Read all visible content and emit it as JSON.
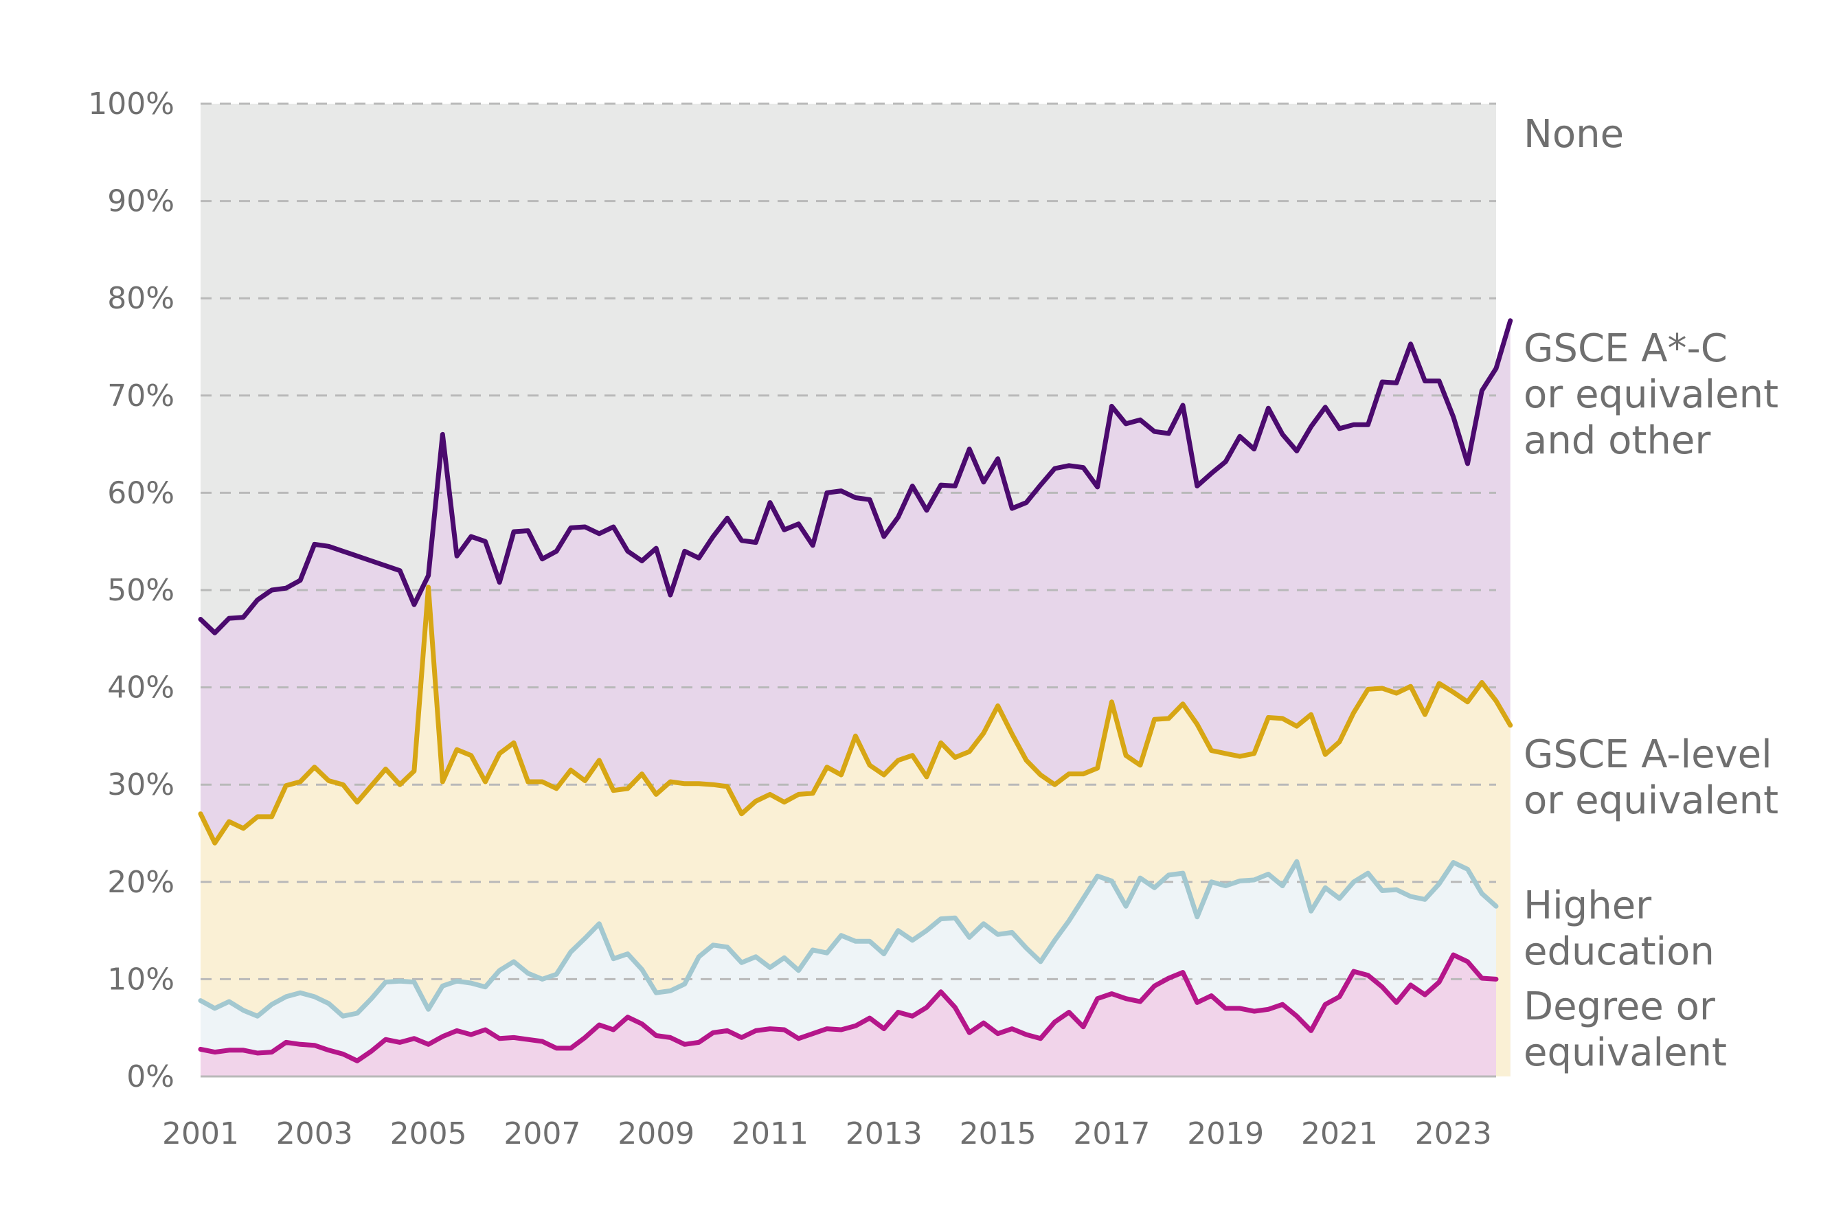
{
  "chart_data": {
    "type": "area",
    "title": "",
    "xlabel": "",
    "ylabel": "",
    "ylim": [
      0,
      100
    ],
    "y_ticks": [
      {
        "value": 0,
        "label": "0%"
      },
      {
        "value": 10,
        "label": "10%"
      },
      {
        "value": 20,
        "label": "20%"
      },
      {
        "value": 30,
        "label": "30%"
      },
      {
        "value": 40,
        "label": "40%"
      },
      {
        "value": 50,
        "label": "50%"
      },
      {
        "value": 60,
        "label": "60%"
      },
      {
        "value": 70,
        "label": "70%"
      },
      {
        "value": 80,
        "label": "80%"
      },
      {
        "value": 90,
        "label": "90%"
      },
      {
        "value": 100,
        "label": "100%"
      }
    ],
    "x_ticks": [
      {
        "value": 2001,
        "label": "2001"
      },
      {
        "value": 2003,
        "label": "2003"
      },
      {
        "value": 2005,
        "label": "2005"
      },
      {
        "value": 2007,
        "label": "2007"
      },
      {
        "value": 2009,
        "label": "2009"
      },
      {
        "value": 2011,
        "label": "2011"
      },
      {
        "value": 2013,
        "label": "2013"
      },
      {
        "value": 2015,
        "label": "2015"
      },
      {
        "value": 2017,
        "label": "2017"
      },
      {
        "value": 2019,
        "label": "2019"
      },
      {
        "value": 2021,
        "label": "2021"
      },
      {
        "value": 2023,
        "label": "2023"
      }
    ],
    "xlim": [
      2001,
      2023.75
    ],
    "grid": true,
    "x_start": 2001,
    "x_step": 0.25,
    "none_label": "None",
    "none_fill": "#e8e9e8",
    "series": [
      {
        "name": "GSCE A*-C or equivalent and other",
        "label_lines": [
          "GSCE A*-C",
          "or equivalent",
          "and other"
        ],
        "line_color": "#4b0a6e",
        "fill_color": "#e7d6ea",
        "values": [
          47.0,
          45.6,
          47.1,
          47.2,
          49.0,
          50.0,
          50.2,
          51.0,
          54.7,
          54.5,
          54.0,
          53.5,
          53.0,
          52.5,
          52.0,
          48.5,
          51.5,
          66.0,
          53.5,
          55.5,
          55.0,
          50.8,
          56.0,
          56.1,
          53.2,
          54.0,
          56.4,
          56.5,
          55.8,
          56.5,
          54.0,
          53.0,
          54.3,
          49.5,
          54.0,
          53.3,
          55.5,
          57.4,
          55.1,
          54.9,
          59.0,
          56.2,
          56.8,
          54.6,
          60.0,
          60.2,
          59.5,
          59.3,
          55.5,
          57.5,
          60.7,
          58.2,
          60.8,
          60.7,
          64.5,
          61.1,
          63.5,
          58.4,
          59.0,
          60.8,
          62.5,
          62.8,
          62.6,
          60.6,
          68.9,
          67.1,
          67.5,
          66.3,
          66.1,
          69.0,
          60.7,
          62.0,
          63.2,
          65.8,
          64.5,
          68.7,
          66.0,
          64.3,
          66.8,
          68.8,
          66.6,
          67.0,
          67.0,
          71.4,
          71.3,
          75.3,
          71.5,
          71.5,
          67.8,
          63.0,
          70.5,
          72.8,
          77.7
        ]
      },
      {
        "name": "GSCE A-level or equivalent",
        "label_lines": [
          "GSCE A-level",
          "or equivalent"
        ],
        "line_color": "#d7a614",
        "fill_color": "#faf0d5",
        "values": [
          27.0,
          24.0,
          26.2,
          25.5,
          26.7,
          26.7,
          29.9,
          30.3,
          31.8,
          30.4,
          30.0,
          28.2,
          29.9,
          31.6,
          30.0,
          31.4,
          50.3,
          30.3,
          33.6,
          33.0,
          30.3,
          33.2,
          34.3,
          30.3,
          30.3,
          29.6,
          31.5,
          30.4,
          32.5,
          29.4,
          29.6,
          31.1,
          29.0,
          30.3,
          30.1,
          30.1,
          30.0,
          29.8,
          27.0,
          28.3,
          29.0,
          28.2,
          29.0,
          29.1,
          31.8,
          31.0,
          35.0,
          32.0,
          31.0,
          32.5,
          33.0,
          30.8,
          34.3,
          32.8,
          33.4,
          35.3,
          38.1,
          35.2,
          32.5,
          31.0,
          30.0,
          31.1,
          31.1,
          31.7,
          38.5,
          33.0,
          32.0,
          36.7,
          36.8,
          38.3,
          36.2,
          33.5,
          33.2,
          32.9,
          33.2,
          36.9,
          36.8,
          36.0,
          37.2,
          33.1,
          34.4,
          37.4,
          39.8,
          39.9,
          39.4,
          40.1,
          37.2,
          40.4,
          39.5,
          38.5,
          40.5,
          38.6,
          36.1
        ]
      },
      {
        "name": "Higher education",
        "label_lines": [
          "Higher",
          "education"
        ],
        "line_color": "#a3c8d0",
        "fill_color": "#eef4f7",
        "values": [
          7.8,
          7.0,
          7.7,
          6.8,
          6.2,
          7.4,
          8.2,
          8.6,
          8.2,
          7.5,
          6.2,
          6.5,
          8.0,
          9.7,
          9.8,
          9.7,
          6.9,
          9.3,
          9.8,
          9.6,
          9.2,
          10.9,
          11.8,
          10.6,
          10.0,
          10.5,
          12.8,
          14.2,
          15.7,
          12.1,
          12.6,
          11.0,
          8.6,
          8.8,
          9.5,
          12.3,
          13.5,
          13.3,
          11.7,
          12.3,
          11.2,
          12.2,
          10.9,
          13.0,
          12.7,
          14.5,
          13.9,
          13.9,
          12.6,
          15.0,
          14.0,
          15.0,
          16.2,
          16.3,
          14.3,
          15.7,
          14.6,
          14.8,
          13.2,
          11.8,
          14.0,
          16.0,
          18.3,
          20.6,
          20.1,
          17.5,
          20.4,
          19.4,
          20.7,
          20.9,
          16.4,
          20.0,
          19.6,
          20.1,
          20.2,
          20.8,
          19.6,
          22.1,
          17.0,
          19.4,
          18.3,
          20.0,
          20.9,
          19.1,
          19.2,
          18.5,
          18.2,
          19.8,
          22.0,
          21.3,
          18.8,
          17.5
        ]
      },
      {
        "name": "Degree or equivalent",
        "label_lines": [
          "Degree or",
          "equivalent"
        ],
        "line_color": "#b5168a",
        "fill_color": "#f1d4ea",
        "values": [
          2.8,
          2.5,
          2.7,
          2.7,
          2.4,
          2.5,
          3.5,
          3.3,
          3.2,
          2.7,
          2.3,
          1.6,
          2.6,
          3.8,
          3.5,
          3.9,
          3.3,
          4.1,
          4.7,
          4.3,
          4.8,
          3.9,
          4.0,
          3.8,
          3.6,
          2.9,
          2.9,
          4.0,
          5.3,
          4.8,
          6.1,
          5.4,
          4.2,
          4.0,
          3.3,
          3.5,
          4.5,
          4.7,
          4.0,
          4.7,
          4.9,
          4.8,
          3.9,
          4.4,
          4.9,
          4.8,
          5.2,
          6.0,
          4.9,
          6.6,
          6.2,
          7.1,
          8.7,
          7.1,
          4.5,
          5.5,
          4.4,
          4.9,
          4.3,
          3.9,
          5.6,
          6.6,
          5.1,
          8.0,
          8.5,
          8.0,
          7.7,
          9.3,
          10.1,
          10.7,
          7.6,
          8.3,
          7.0,
          7.0,
          6.7,
          6.9,
          7.4,
          6.2,
          4.7,
          7.4,
          8.2,
          10.8,
          10.4,
          9.2,
          7.6,
          9.4,
          8.4,
          9.7,
          12.5,
          11.8,
          10.1,
          10.0
        ]
      }
    ]
  }
}
